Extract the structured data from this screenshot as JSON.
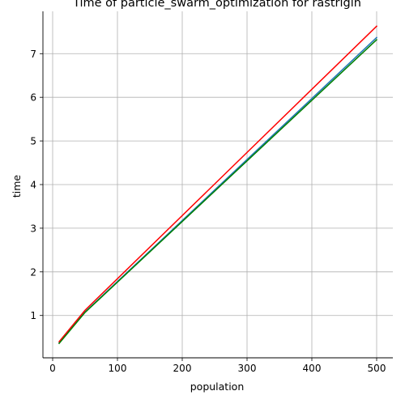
{
  "chart_data": {
    "type": "line",
    "title": "Time of particle_swarm_optimization for rastrigin",
    "xlabel": "population",
    "ylabel": "time",
    "xlim": [
      -15,
      525
    ],
    "ylim": [
      0.03,
      7.97
    ],
    "xticks": [
      0,
      100,
      200,
      300,
      400,
      500
    ],
    "yticks": [
      1,
      2,
      3,
      4,
      5,
      6,
      7
    ],
    "grid": true,
    "colors": {
      "axis": "#000000",
      "grid": "#b0b0b0"
    },
    "series": [
      {
        "color": "#1f77b4",
        "x": [
          10,
          50,
          500
        ],
        "y": [
          0.37,
          1.08,
          7.37
        ]
      },
      {
        "color": "#ff0000",
        "x": [
          10,
          50,
          500
        ],
        "y": [
          0.4,
          1.12,
          7.63
        ]
      },
      {
        "color": "#008000",
        "x": [
          10,
          50,
          500
        ],
        "y": [
          0.36,
          1.07,
          7.32
        ]
      }
    ]
  }
}
